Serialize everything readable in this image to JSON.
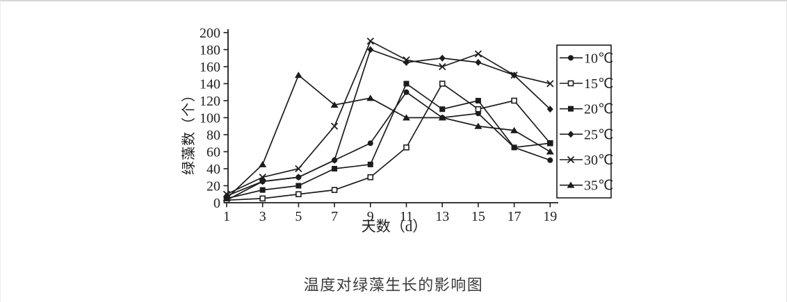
{
  "chart_data": {
    "type": "line",
    "title": "温度对绿藻生长的影响图",
    "xlabel": "天数（d）",
    "ylabel": "绿藻数（个）",
    "x": [
      1,
      3,
      5,
      7,
      9,
      11,
      13,
      15,
      17,
      19
    ],
    "xticks": [
      1,
      3,
      5,
      7,
      9,
      11,
      13,
      15,
      17,
      19
    ],
    "ylim": [
      0,
      200
    ],
    "ytick_step": 20,
    "grid": false,
    "legend_position": "right",
    "line_color": "#1c1c1c",
    "title_color": "#3b3b3b",
    "series": [
      {
        "name": "10℃",
        "marker": "circle",
        "values": [
          3,
          25,
          30,
          50,
          70,
          130,
          100,
          105,
          65,
          50
        ]
      },
      {
        "name": "15℃",
        "marker": "open-square",
        "values": [
          3,
          5,
          10,
          15,
          30,
          65,
          140,
          110,
          120,
          70
        ]
      },
      {
        "name": "20℃",
        "marker": "square",
        "values": [
          5,
          15,
          20,
          40,
          45,
          140,
          110,
          120,
          65,
          70
        ]
      },
      {
        "name": "25℃",
        "marker": "diamond",
        "values": [
          8,
          25,
          30,
          50,
          180,
          165,
          170,
          165,
          150,
          110
        ]
      },
      {
        "name": "30℃",
        "marker": "x",
        "values": [
          10,
          30,
          40,
          90,
          190,
          168,
          160,
          175,
          150,
          140
        ]
      },
      {
        "name": "35℃",
        "marker": "triangle",
        "values": [
          5,
          45,
          150,
          115,
          123,
          100,
          100,
          90,
          85,
          60
        ]
      }
    ]
  }
}
